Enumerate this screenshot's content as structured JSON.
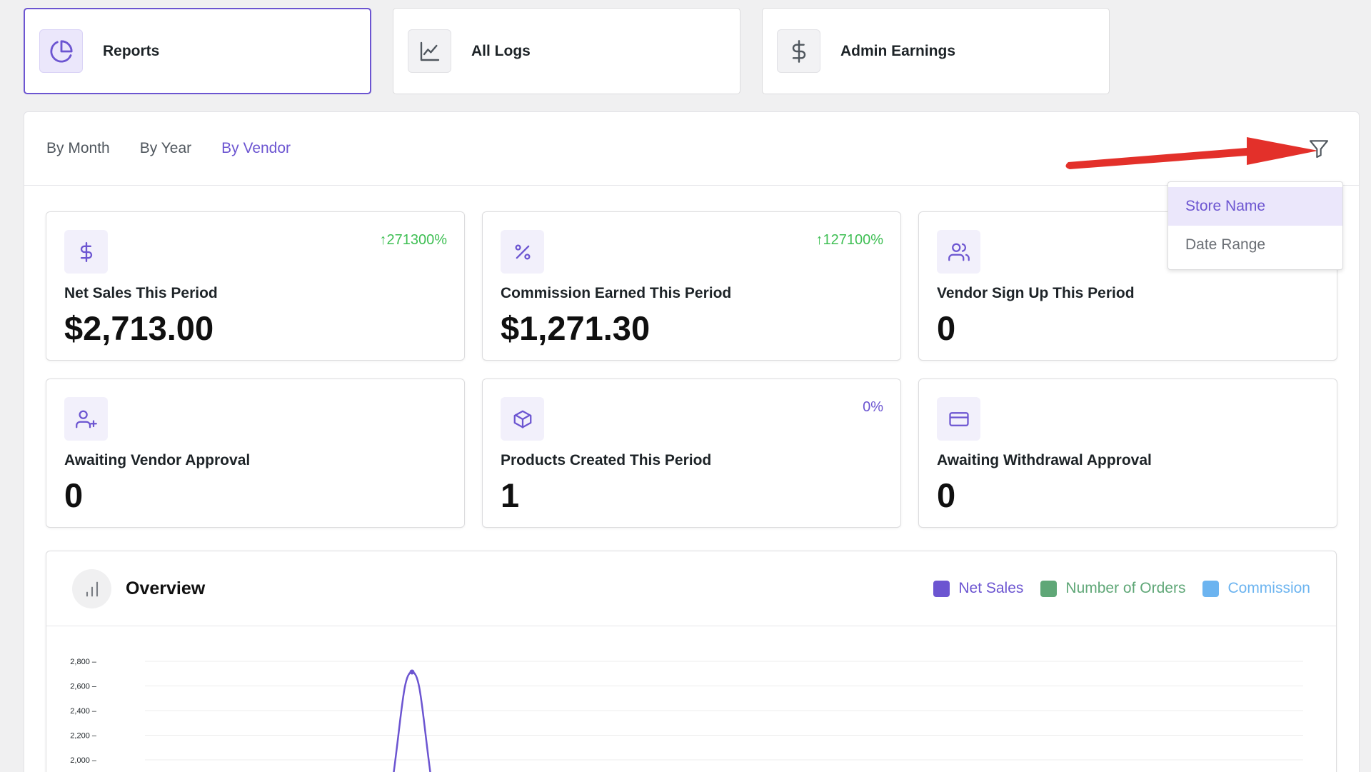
{
  "top_tabs": [
    {
      "label": "Reports",
      "icon": "pie-chart-icon"
    },
    {
      "label": "All Logs",
      "icon": "line-chart-icon"
    },
    {
      "label": "Admin Earnings",
      "icon": "dollar-icon"
    }
  ],
  "subnav": {
    "items": [
      "By Month",
      "By Year",
      "By Vendor"
    ],
    "active": "By Vendor"
  },
  "filter_dropdown": {
    "options": [
      "Store Name",
      "Date Range"
    ],
    "selected": "Store Name"
  },
  "stats": [
    {
      "label": "Net Sales This Period",
      "value": "$2,713.00",
      "change": "271300%",
      "change_dir": "up",
      "icon": "dollar-icon"
    },
    {
      "label": "Commission Earned This Period",
      "value": "$1,271.30",
      "change": "127100%",
      "change_dir": "up",
      "icon": "percent-icon"
    },
    {
      "label": "Vendor Sign Up This Period",
      "value": "0",
      "change": "",
      "icon": "users-icon"
    },
    {
      "label": "Awaiting Vendor Approval",
      "value": "0",
      "change": "",
      "icon": "user-plus-icon"
    },
    {
      "label": "Products Created This Period",
      "value": "1",
      "change": "0%",
      "change_dir": "neutral",
      "icon": "box-icon"
    },
    {
      "label": "Awaiting Withdrawal Approval",
      "value": "0",
      "change": "",
      "icon": "credit-card-icon"
    }
  ],
  "overview": {
    "title": "Overview",
    "legend": [
      {
        "label": "Net Sales",
        "color": "#6c55d1"
      },
      {
        "label": "Number of Orders",
        "color": "#5fa777"
      },
      {
        "label": "Commission",
        "color": "#6cb4f0"
      }
    ]
  },
  "colors": {
    "accent": "#6c55d1",
    "up": "#3fbf54",
    "annotation_arrow": "#e3302a"
  },
  "chart_data": {
    "type": "line",
    "ylim": [
      2000,
      2800
    ],
    "yticks": [
      "2,800",
      "2,600",
      "2,400",
      "2,200",
      "2,000"
    ],
    "series": [
      {
        "name": "Net Sales",
        "peak_value": 2713
      }
    ]
  }
}
